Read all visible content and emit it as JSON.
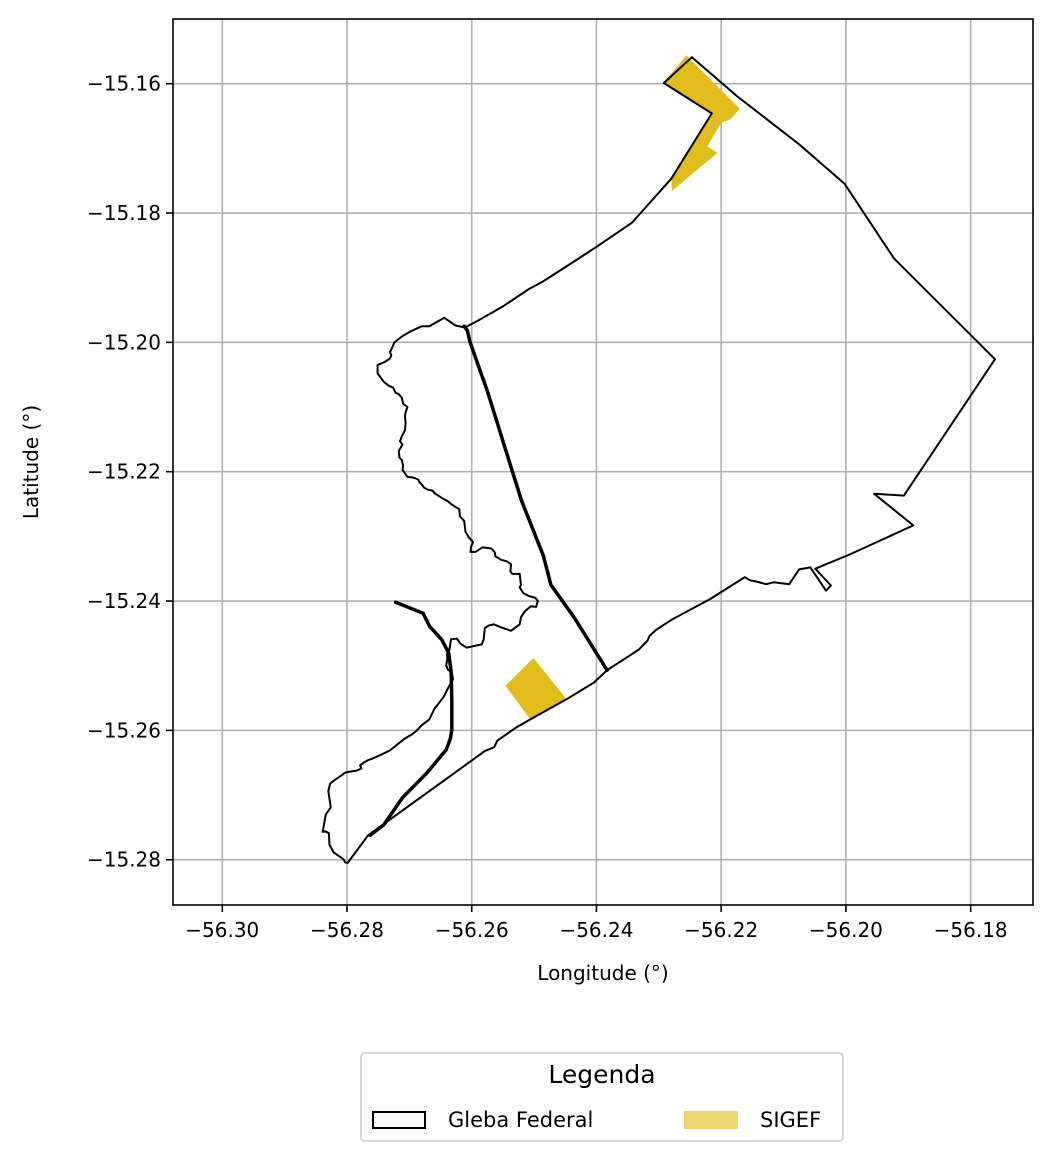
{
  "colors": {
    "boundary": "#000000",
    "sigef_fill": "#e0bd1d",
    "sigef_legend": "#ebd572",
    "grid": "#b0b0b0",
    "legend_border": "#d6d6d6"
  },
  "chart_data": {
    "type": "map",
    "xlabel": "Longitude (°)",
    "ylabel": "Latitude (°)",
    "xlim": [
      -56.3079,
      -56.17
    ],
    "ylim": [
      -15.287,
      -15.15
    ],
    "grid": true,
    "x_ticks": [
      -56.3,
      -56.28,
      -56.26,
      -56.24,
      -56.22,
      -56.2,
      -56.18
    ],
    "x_tick_labels": [
      "−56.30",
      "−56.28",
      "−56.26",
      "−56.24",
      "−56.22",
      "−56.20",
      "−56.18"
    ],
    "y_ticks": [
      -15.16,
      -15.18,
      -15.2,
      -15.22,
      -15.24,
      -15.26,
      -15.28
    ],
    "y_tick_labels": [
      "−15.16",
      "−15.18",
      "−15.20",
      "−15.22",
      "−15.24",
      "−15.26",
      "−15.28"
    ],
    "legend": {
      "title": "Legenda",
      "placement": "below",
      "entries": [
        "Gleba Federal",
        "SIGEF"
      ]
    },
    "gleba_outer": [
      [
        -56.2292,
        -15.1599
      ],
      [
        -56.2247,
        -15.1559
      ],
      [
        -56.2175,
        -15.1619
      ],
      [
        -56.2076,
        -15.1693
      ],
      [
        -56.2002,
        -15.1755
      ],
      [
        -56.1923,
        -15.187
      ],
      [
        -56.1761,
        -15.2026
      ],
      [
        -56.1907,
        -15.2237
      ],
      [
        -56.1955,
        -15.2234
      ],
      [
        -56.1892,
        -15.2283
      ],
      [
        -56.1994,
        -15.2328
      ],
      [
        -56.2049,
        -15.235
      ],
      [
        -56.2024,
        -15.2376
      ],
      [
        -56.2032,
        -15.2384
      ],
      [
        -56.2057,
        -15.2348
      ],
      [
        -56.2075,
        -15.2351
      ],
      [
        -56.2091,
        -15.2374
      ],
      [
        -56.2116,
        -15.2371
      ],
      [
        -56.2128,
        -15.2374
      ],
      [
        -56.2143,
        -15.237
      ],
      [
        -56.2154,
        -15.2368
      ],
      [
        -56.2162,
        -15.2363
      ],
      [
        -56.2218,
        -15.2397
      ],
      [
        -56.2278,
        -15.2428
      ],
      [
        -56.2305,
        -15.2445
      ],
      [
        -56.2315,
        -15.2454
      ],
      [
        -56.2318,
        -15.2461
      ],
      [
        -56.2332,
        -15.2475
      ],
      [
        -56.2383,
        -15.2507
      ],
      [
        -56.2404,
        -15.2526
      ],
      [
        -56.2448,
        -15.2552
      ],
      [
        -56.2506,
        -15.2583
      ],
      [
        -56.2528,
        -15.2595
      ],
      [
        -56.2559,
        -15.2616
      ],
      [
        -56.2564,
        -15.2626
      ],
      [
        -56.2579,
        -15.2632
      ],
      [
        -56.2766,
        -15.2762
      ],
      [
        -56.2799,
        -15.2805
      ],
      [
        -56.2803,
        -15.2804
      ],
      [
        -56.2806,
        -15.2799
      ],
      [
        -56.2821,
        -15.2789
      ],
      [
        -56.2828,
        -15.2777
      ],
      [
        -56.2829,
        -15.2759
      ],
      [
        -56.2835,
        -15.2756
      ],
      [
        -56.2839,
        -15.2757
      ],
      [
        -56.2834,
        -15.273
      ],
      [
        -56.2826,
        -15.2719
      ],
      [
        -56.283,
        -15.2694
      ],
      [
        -56.2827,
        -15.2682
      ],
      [
        -56.282,
        -15.2677
      ],
      [
        -56.2802,
        -15.2665
      ],
      [
        -56.2784,
        -15.2662
      ],
      [
        -56.2777,
        -15.2659
      ],
      [
        -56.2779,
        -15.2654
      ],
      [
        -56.2772,
        -15.2649
      ],
      [
        -56.2766,
        -15.2646
      ],
      [
        -56.276,
        -15.2644
      ],
      [
        -56.2744,
        -15.2637
      ],
      [
        -56.2731,
        -15.2631
      ],
      [
        -56.2722,
        -15.2624
      ],
      [
        -56.2708,
        -15.2613
      ],
      [
        -56.2697,
        -15.2607
      ],
      [
        -56.2689,
        -15.2601
      ],
      [
        -56.268,
        -15.2592
      ],
      [
        -56.2668,
        -15.2583
      ],
      [
        -56.266,
        -15.2567
      ],
      [
        -56.2645,
        -15.2548
      ],
      [
        -56.2637,
        -15.2533
      ],
      [
        -56.263,
        -15.2521
      ],
      [
        -56.2632,
        -15.2511
      ],
      [
        -56.2638,
        -15.2506
      ],
      [
        -56.2641,
        -15.25
      ],
      [
        -56.2639,
        -15.2489
      ],
      [
        -56.264,
        -15.2482
      ],
      [
        -56.2636,
        -15.2476
      ],
      [
        -56.2633,
        -15.2459
      ],
      [
        -56.2624,
        -15.2458
      ],
      [
        -56.2618,
        -15.2466
      ],
      [
        -56.2608,
        -15.2472
      ],
      [
        -56.2594,
        -15.2469
      ],
      [
        -56.2584,
        -15.2467
      ],
      [
        -56.2581,
        -15.246
      ],
      [
        -56.2579,
        -15.2442
      ],
      [
        -56.2573,
        -15.2438
      ],
      [
        -56.2565,
        -15.2436
      ],
      [
        -56.2552,
        -15.2441
      ],
      [
        -56.2537,
        -15.2446
      ],
      [
        -56.2523,
        -15.2436
      ],
      [
        -56.2521,
        -15.2425
      ],
      [
        -56.2515,
        -15.2416
      ],
      [
        -56.2505,
        -15.2408
      ],
      [
        -56.2497,
        -15.2409
      ],
      [
        -56.2494,
        -15.24
      ],
      [
        -56.2498,
        -15.2395
      ],
      [
        -56.2509,
        -15.2392
      ],
      [
        -56.2517,
        -15.2388
      ],
      [
        -56.2523,
        -15.2379
      ],
      [
        -56.2521,
        -15.2375
      ],
      [
        -56.2522,
        -15.2368
      ],
      [
        -56.2523,
        -15.2358
      ],
      [
        -56.2535,
        -15.2358
      ],
      [
        -56.2538,
        -15.2354
      ],
      [
        -56.2537,
        -15.2343
      ],
      [
        -56.2543,
        -15.2339
      ],
      [
        -56.2553,
        -15.2336
      ],
      [
        -56.2562,
        -15.2331
      ],
      [
        -56.2563,
        -15.2325
      ],
      [
        -56.2568,
        -15.2319
      ],
      [
        -56.2574,
        -15.2318
      ],
      [
        -56.2583,
        -15.2317
      ],
      [
        -56.2594,
        -15.2324
      ],
      [
        -56.2602,
        -15.2324
      ],
      [
        -56.2601,
        -15.2316
      ],
      [
        -56.2598,
        -15.2309
      ],
      [
        -56.2605,
        -15.2301
      ],
      [
        -56.261,
        -15.2293
      ],
      [
        -56.2612,
        -15.2276
      ],
      [
        -56.2619,
        -15.2269
      ],
      [
        -56.262,
        -15.2258
      ],
      [
        -56.2627,
        -15.2254
      ],
      [
        -56.2633,
        -15.225
      ],
      [
        -56.2638,
        -15.2246
      ],
      [
        -56.2649,
        -15.224
      ],
      [
        -56.266,
        -15.2233
      ],
      [
        -56.2663,
        -15.2229
      ],
      [
        -56.267,
        -15.2228
      ],
      [
        -56.2676,
        -15.2225
      ],
      [
        -56.268,
        -15.222
      ],
      [
        -56.2684,
        -15.2216
      ],
      [
        -56.2686,
        -15.2212
      ],
      [
        -56.2694,
        -15.2209
      ],
      [
        -56.2703,
        -15.2208
      ],
      [
        -56.2711,
        -15.2197
      ],
      [
        -56.271,
        -15.2191
      ],
      [
        -56.2712,
        -15.2182
      ],
      [
        -56.2716,
        -15.2178
      ],
      [
        -56.2717,
        -15.2168
      ],
      [
        -56.2711,
        -15.2158
      ],
      [
        -56.2715,
        -15.2153
      ],
      [
        -56.2712,
        -15.2145
      ],
      [
        -56.2707,
        -15.2136
      ],
      [
        -56.2706,
        -15.2124
      ],
      [
        -56.2707,
        -15.2115
      ],
      [
        -56.2706,
        -15.2108
      ],
      [
        -56.2703,
        -15.21
      ],
      [
        -56.271,
        -15.2095
      ],
      [
        -56.2712,
        -15.2086
      ],
      [
        -56.2717,
        -15.208
      ],
      [
        -56.2722,
        -15.2078
      ],
      [
        -56.2726,
        -15.207
      ],
      [
        -56.2733,
        -15.2067
      ],
      [
        -56.2741,
        -15.2061
      ],
      [
        -56.2751,
        -15.2048
      ],
      [
        -56.2751,
        -15.2035
      ],
      [
        -56.2739,
        -15.203
      ],
      [
        -56.2731,
        -15.2025
      ],
      [
        -56.2729,
        -15.202
      ],
      [
        -56.2731,
        -15.2015
      ],
      [
        -56.2727,
        -15.2007
      ],
      [
        -56.2724,
        -15.2
      ],
      [
        -56.2712,
        -15.1991
      ],
      [
        -56.2698,
        -15.1983
      ],
      [
        -56.268,
        -15.1975
      ],
      [
        -56.2668,
        -15.1975
      ],
      [
        -56.2644,
        -15.1962
      ],
      [
        -56.2626,
        -15.1974
      ],
      [
        -56.2611,
        -15.1977
      ],
      [
        -56.2591,
        -15.1967
      ],
      [
        -56.2551,
        -15.1945
      ],
      [
        -56.2509,
        -15.1918
      ],
      [
        -56.2486,
        -15.1906
      ],
      [
        -56.2436,
        -15.1875
      ],
      [
        -56.2401,
        -15.1853
      ],
      [
        -56.2343,
        -15.1815
      ],
      [
        -56.228,
        -15.1747
      ],
      [
        -56.2215,
        -15.1646
      ],
      [
        -56.2292,
        -15.1599
      ]
    ],
    "gleba_inner_roads": [
      [
        [
          -56.2612,
          -15.1975
        ],
        [
          -56.2607,
          -15.1982
        ],
        [
          -56.2603,
          -15.1999
        ],
        [
          -56.2575,
          -15.2075
        ],
        [
          -56.2545,
          -15.2168
        ],
        [
          -56.252,
          -15.2245
        ],
        [
          -56.2485,
          -15.233
        ],
        [
          -56.2473,
          -15.2375
        ],
        [
          -56.2436,
          -15.2425
        ],
        [
          -56.2383,
          -15.2507
        ]
      ],
      [
        [
          -56.2763,
          -15.2762
        ],
        [
          -56.2741,
          -15.2746
        ],
        [
          -56.2711,
          -15.2704
        ],
        [
          -56.2673,
          -15.2667
        ],
        [
          -56.2641,
          -15.263
        ],
        [
          -56.2634,
          -15.2612
        ],
        [
          -56.2632,
          -15.2599
        ],
        [
          -56.2632,
          -15.2575
        ],
        [
          -56.2632,
          -15.2553
        ],
        [
          -56.2633,
          -15.2508
        ],
        [
          -56.2637,
          -15.248
        ],
        [
          -56.2648,
          -15.246
        ],
        [
          -56.266,
          -15.2447
        ],
        [
          -56.2667,
          -15.244
        ],
        [
          -56.2678,
          -15.2419
        ],
        [
          -56.2722,
          -15.2402
        ]
      ]
    ],
    "sigef_polygons": [
      [
        [
          -56.2292,
          -15.1598
        ],
        [
          -56.2256,
          -15.1556
        ],
        [
          -56.217,
          -15.1639
        ],
        [
          -56.2185,
          -15.1655
        ],
        [
          -56.22,
          -15.166
        ],
        [
          -56.2222,
          -15.1697
        ],
        [
          -56.2206,
          -15.1707
        ],
        [
          -56.2279,
          -15.1766
        ],
        [
          -56.228,
          -15.1747
        ],
        [
          -56.2237,
          -15.1683
        ],
        [
          -56.2215,
          -15.1646
        ],
        [
          -56.2292,
          -15.1598
        ]
      ],
      [
        [
          -56.2546,
          -15.2531
        ],
        [
          -56.2501,
          -15.2488
        ],
        [
          -56.2448,
          -15.2552
        ],
        [
          -56.2506,
          -15.2583
        ],
        [
          -56.2546,
          -15.2531
        ]
      ]
    ]
  }
}
